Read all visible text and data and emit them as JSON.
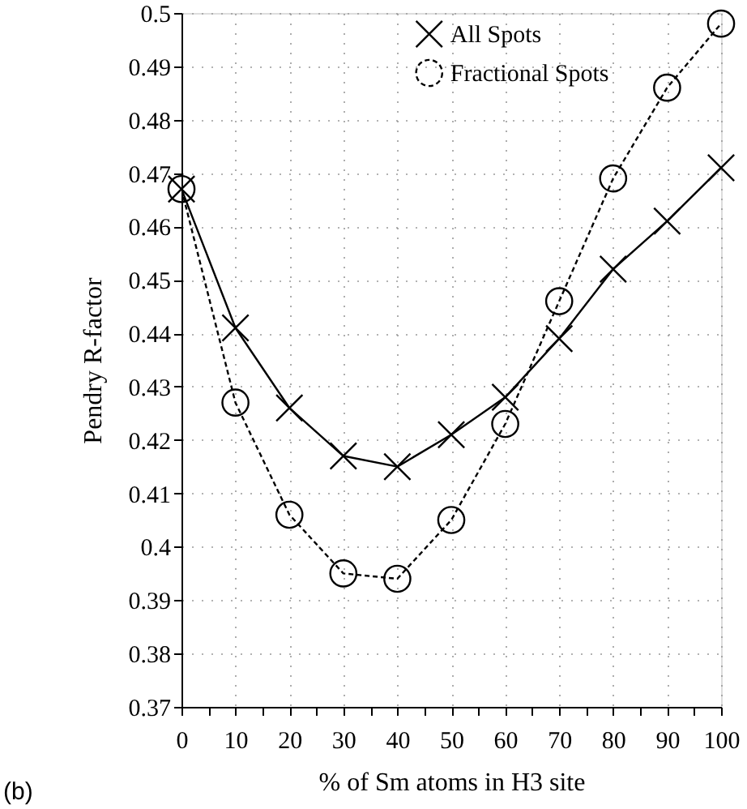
{
  "chart_data": {
    "type": "line",
    "xlabel": "% of Sm atoms in H3 site",
    "ylabel": "Pendry R-factor",
    "x": [
      0,
      10,
      20,
      30,
      40,
      50,
      60,
      70,
      80,
      90,
      100
    ],
    "series": [
      {
        "name": "All Spots",
        "color": "#000000",
        "marker": "cross",
        "line_style": "solid",
        "values": [
          0.467,
          0.441,
          0.426,
          0.417,
          0.415,
          0.421,
          0.428,
          0.439,
          0.452,
          0.461,
          0.471
        ]
      },
      {
        "name": "Fractional Spots",
        "color": "#000000",
        "marker": "circle",
        "line_style": "dashed",
        "values": [
          0.467,
          0.427,
          0.406,
          0.395,
          0.394,
          0.405,
          0.423,
          0.446,
          0.469,
          0.486,
          0.498
        ]
      }
    ],
    "xlim": [
      0,
      100
    ],
    "xticks": [
      0,
      {
        "value": 5,
        "label": null
      },
      10,
      {
        "value": 15,
        "label": null
      },
      20,
      {
        "value": 25,
        "label": null
      },
      30,
      {
        "value": 35,
        "label": null
      },
      40,
      {
        "value": 45,
        "label": null
      },
      50,
      {
        "value": 55,
        "label": null
      },
      60,
      {
        "value": 65,
        "label": null
      },
      70,
      {
        "value": 75,
        "label": null
      },
      80,
      {
        "value": 85,
        "label": null
      },
      90,
      {
        "value": 95,
        "label": null
      },
      100
    ],
    "ylim": [
      0.37,
      0.5
    ],
    "yticks": [
      0.37,
      0.38,
      0.39,
      0.4,
      0.41,
      0.42,
      0.43,
      0.44,
      0.45,
      0.46,
      0.47,
      0.48,
      0.49,
      0.5
    ],
    "grid": true,
    "legend": "top right",
    "annotations": [
      "(b)"
    ]
  }
}
